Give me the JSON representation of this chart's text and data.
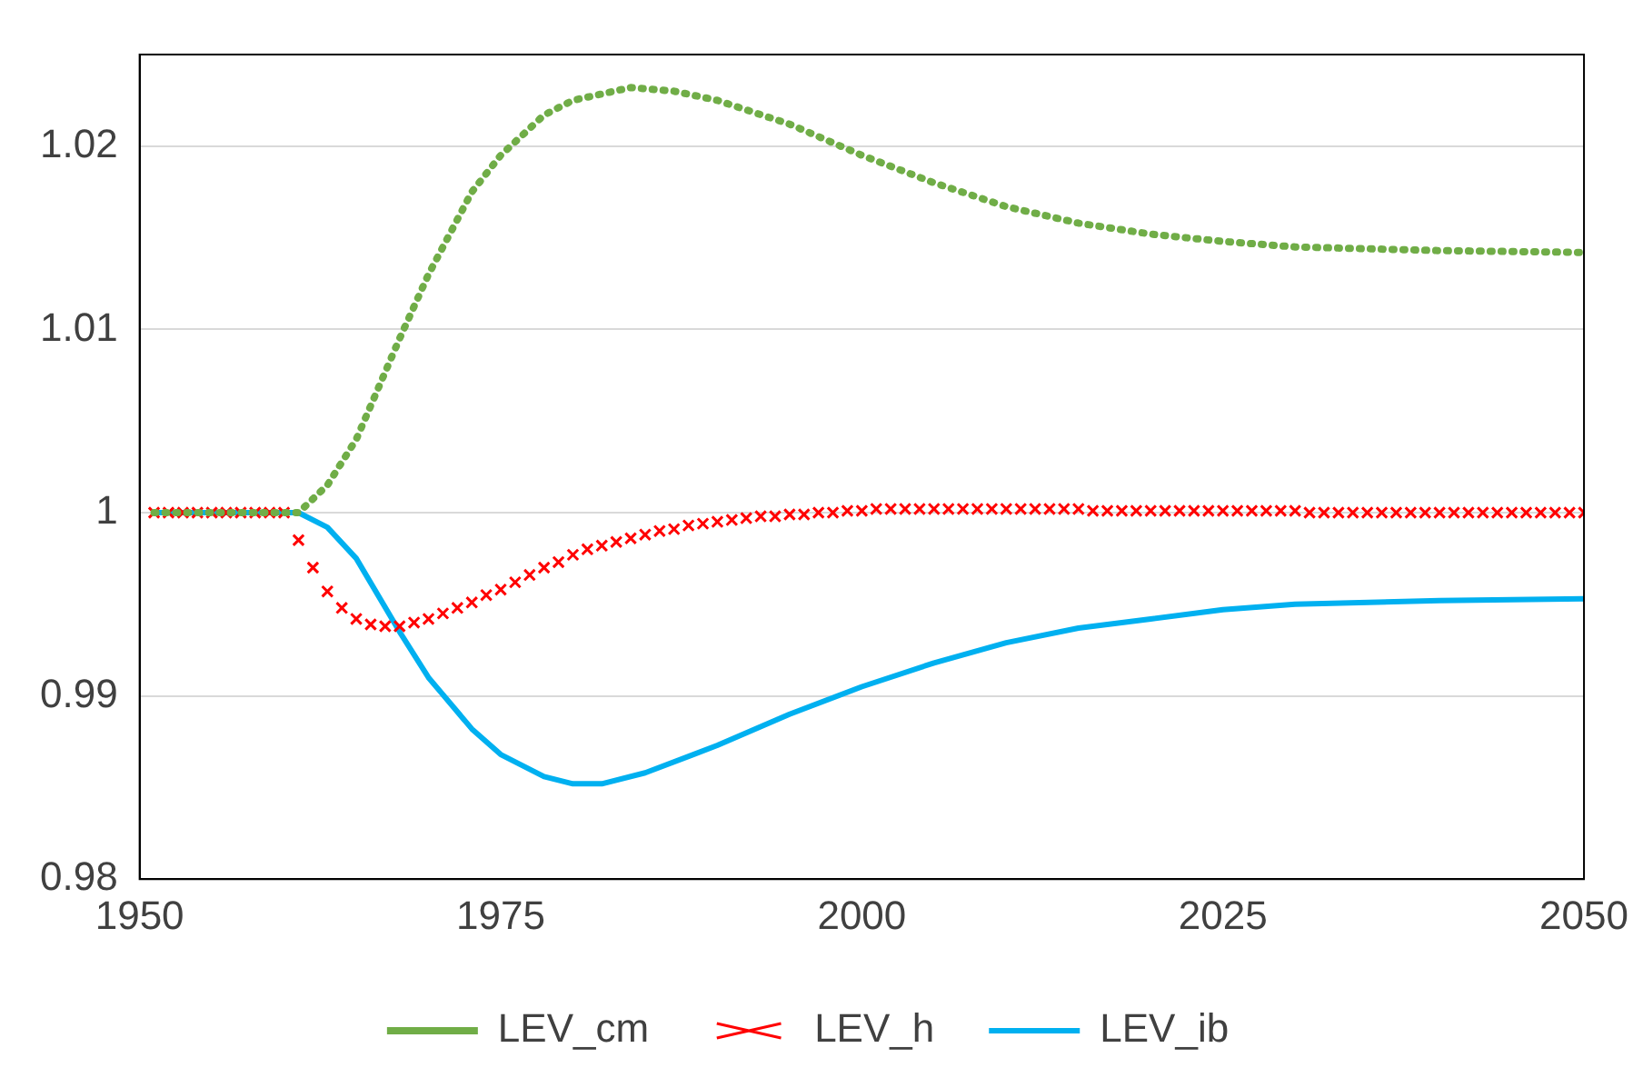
{
  "chart_data": {
    "type": "line",
    "xlim": [
      1950,
      2050
    ],
    "xticks": [
      1950,
      1975,
      2000,
      2025,
      2050
    ],
    "ylim": [
      0.98,
      1.025
    ],
    "yticks": [
      0.98,
      0.99,
      1,
      1.01,
      1.02
    ],
    "grid": "y",
    "legend": "bottom",
    "series": [
      {
        "name": "LEV_cm",
        "line_style": "dotted",
        "marker": "none",
        "color": "#70ad47",
        "x": [
          1951,
          1955,
          1961,
          1963,
          1965,
          1968,
          1970,
          1973,
          1975,
          1978,
          1980,
          1984,
          1987,
          1990,
          1995,
          2000,
          2005,
          2010,
          2015,
          2020,
          2025,
          2030,
          2040,
          2050
        ],
        "values": [
          1.0,
          1.0,
          1.0,
          1.0015,
          1.004,
          1.0095,
          1.013,
          1.0175,
          1.0195,
          1.0217,
          1.0225,
          1.0232,
          1.023,
          1.0225,
          1.0212,
          1.0195,
          1.018,
          1.0167,
          1.0158,
          1.0152,
          1.0148,
          1.0145,
          1.0143,
          1.0142
        ]
      },
      {
        "name": "LEV_h",
        "type": "scatter",
        "marker": "cross",
        "color": "#ff0000",
        "x": [
          1951,
          1952,
          1953,
          1954,
          1955,
          1956,
          1957,
          1958,
          1959,
          1960,
          1961,
          1962,
          1963,
          1964,
          1965,
          1966,
          1967,
          1968,
          1969,
          1970,
          1971,
          1972,
          1973,
          1974,
          1975,
          1976,
          1977,
          1978,
          1979,
          1980,
          1981,
          1982,
          1983,
          1984,
          1985,
          1986,
          1987,
          1988,
          1989,
          1990,
          1991,
          1992,
          1993,
          1994,
          1995,
          1996,
          1997,
          1998,
          1999,
          2000,
          2001,
          2002,
          2003,
          2004,
          2005,
          2006,
          2007,
          2008,
          2009,
          2010,
          2011,
          2012,
          2013,
          2014,
          2015,
          2016,
          2017,
          2018,
          2019,
          2020,
          2021,
          2022,
          2023,
          2024,
          2025,
          2026,
          2027,
          2028,
          2029,
          2030,
          2031,
          2032,
          2033,
          2034,
          2035,
          2036,
          2037,
          2038,
          2039,
          2040,
          2041,
          2042,
          2043,
          2044,
          2045,
          2046,
          2047,
          2048,
          2049,
          2050
        ],
        "values": [
          1.0,
          1.0,
          1.0,
          1.0,
          1.0,
          1.0,
          1.0,
          1.0,
          1.0,
          1.0,
          0.9985,
          0.997,
          0.9957,
          0.9948,
          0.9942,
          0.9939,
          0.9938,
          0.9938,
          0.994,
          0.9942,
          0.9945,
          0.9948,
          0.9951,
          0.9955,
          0.9958,
          0.9962,
          0.9966,
          0.997,
          0.9973,
          0.9977,
          0.998,
          0.9982,
          0.9984,
          0.9986,
          0.9988,
          0.999,
          0.9991,
          0.9993,
          0.9994,
          0.9995,
          0.9996,
          0.9997,
          0.9998,
          0.9998,
          0.9999,
          0.9999,
          1.0,
          1.0,
          1.0001,
          1.0001,
          1.0002,
          1.0002,
          1.0002,
          1.0002,
          1.0002,
          1.0002,
          1.0002,
          1.0002,
          1.0002,
          1.0002,
          1.0002,
          1.0002,
          1.0002,
          1.0002,
          1.0002,
          1.0001,
          1.0001,
          1.0001,
          1.0001,
          1.0001,
          1.0001,
          1.0001,
          1.0001,
          1.0001,
          1.0001,
          1.0001,
          1.0001,
          1.0001,
          1.0001,
          1.0001,
          1.0,
          1.0,
          1.0,
          1.0,
          1.0,
          1.0,
          1.0,
          1.0,
          1.0,
          1.0,
          1.0,
          1.0,
          1.0,
          1.0,
          1.0,
          1.0,
          1.0,
          1.0,
          1.0,
          1.0
        ]
      },
      {
        "name": "LEV_ib",
        "line_style": "solid",
        "marker": "none",
        "color": "#00b0f0",
        "x": [
          1951,
          1955,
          1961,
          1963,
          1965,
          1968,
          1970,
          1973,
          1975,
          1978,
          1980,
          1982,
          1985,
          1990,
          1995,
          2000,
          2005,
          2010,
          2015,
          2020,
          2025,
          2030,
          2040,
          2050
        ],
        "values": [
          1.0,
          1.0,
          1.0,
          0.9992,
          0.9975,
          0.9935,
          0.991,
          0.9882,
          0.9868,
          0.9856,
          0.9852,
          0.9852,
          0.9858,
          0.9873,
          0.989,
          0.9905,
          0.9918,
          0.9929,
          0.9937,
          0.9942,
          0.9947,
          0.995,
          0.9952,
          0.9953
        ]
      }
    ]
  }
}
